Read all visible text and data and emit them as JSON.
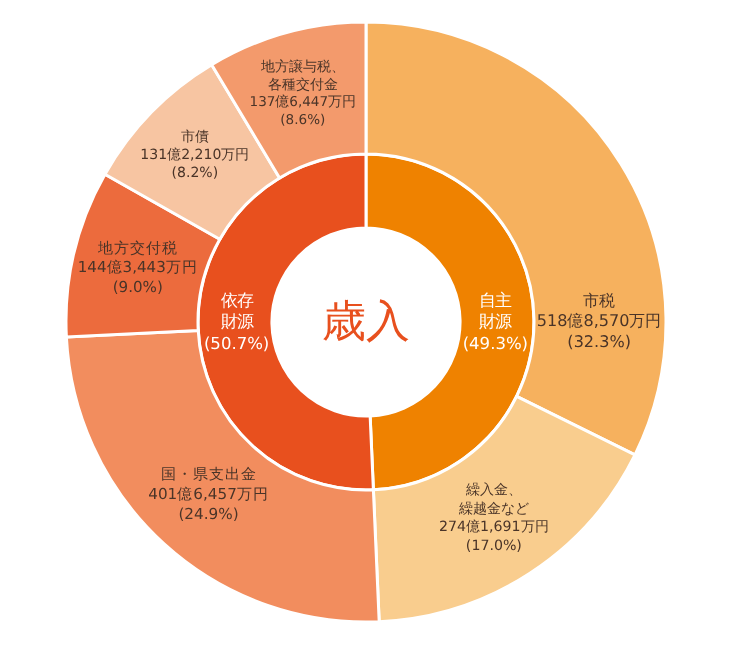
{
  "chart_data": [
    {
      "type": "donut",
      "title": "歳入",
      "categories": [
        "自主財源",
        "依存財源"
      ],
      "values": [
        49.3,
        50.7
      ],
      "value_labels": [
        "(49.3%)",
        "(50.7%)"
      ],
      "colors": [
        "#ef8200",
        "#e8501e"
      ]
    },
    {
      "type": "donut",
      "categories": [
        "市税",
        "繰入金、繰越金など",
        "国・県支出金",
        "地方交付税",
        "市債",
        "地方譲与税、各種交付金"
      ],
      "values": [
        32.3,
        17.0,
        24.9,
        9.0,
        8.2,
        8.6
      ],
      "value_labels": [
        "518億8,570万円\n(32.3%)",
        "274億1,691万円\n(17.0%)",
        "401億6,457万円\n(24.9%)",
        "144億3,443万円\n(9.0%)",
        "131億2,210万円\n(8.2%)",
        "137億6,447万円\n(8.6%)"
      ],
      "colors": [
        "#f6b15e",
        "#f9cd8e",
        "#f28d5e",
        "#ec6b3d",
        "#f7c5a2",
        "#f39a6c"
      ]
    }
  ]
}
